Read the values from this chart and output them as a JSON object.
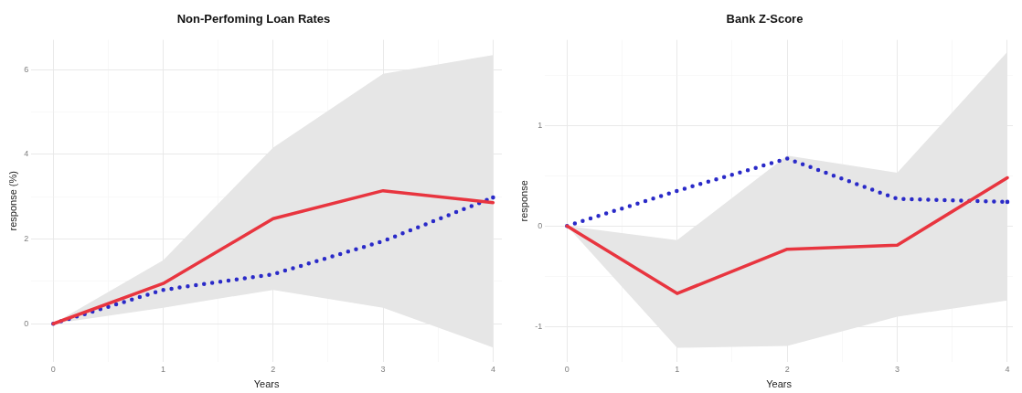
{
  "chart_data": [
    {
      "type": "line",
      "title": "Non-Perfoming Loan Rates",
      "xlabel": "Years",
      "ylabel": "response (%)",
      "x": [
        0,
        1,
        2,
        3,
        4
      ],
      "series": [
        {
          "color": "#e8353f",
          "line_style": "solid",
          "values": [
            0,
            0.95,
            2.48,
            3.14,
            2.86
          ],
          "lower": [
            0,
            0.38,
            0.8,
            0.38,
            -0.56
          ],
          "upper": [
            0,
            1.5,
            4.16,
            5.9,
            6.34
          ]
        },
        {
          "color": "#2a2ac8",
          "line_style": "dotted",
          "values": [
            0,
            0.8,
            1.17,
            1.95,
            2.98
          ]
        }
      ],
      "xlim": [
        -0.2,
        4.08
      ],
      "ylim": [
        -0.9,
        6.7
      ],
      "xticks": [
        0,
        {
          "value": 0.5,
          "label": null
        },
        1,
        {
          "value": 1.5,
          "label": null
        },
        2,
        {
          "value": 2.5,
          "label": null
        },
        3,
        {
          "value": 3.5,
          "label": null
        },
        4
      ],
      "yticks": [
        0,
        {
          "value": 1,
          "label": null
        },
        2,
        {
          "value": 3,
          "label": null
        },
        4,
        {
          "value": 5,
          "label": null
        },
        6
      ],
      "grid": true,
      "legend": false,
      "marker": "none"
    },
    {
      "type": "line",
      "title": "Bank Z-Score",
      "xlabel": "Years",
      "ylabel": "response",
      "x": [
        0,
        1,
        2,
        3,
        4
      ],
      "series": [
        {
          "color": "#e8353f",
          "line_style": "solid",
          "values": [
            0,
            -0.67,
            -0.23,
            -0.19,
            0.48
          ],
          "lower": [
            0,
            -1.21,
            -1.19,
            -0.9,
            -0.74
          ],
          "upper": [
            0,
            -0.14,
            0.7,
            0.53,
            1.73
          ]
        },
        {
          "color": "#2a2ac8",
          "line_style": "dotted",
          "values": [
            0,
            0.35,
            0.67,
            0.27,
            0.24
          ]
        }
      ],
      "xlim": [
        -0.2,
        4.05
      ],
      "ylim": [
        -1.35,
        1.85
      ],
      "xticks": [
        0,
        {
          "value": 0.5,
          "label": null
        },
        1,
        {
          "value": 1.5,
          "label": null
        },
        2,
        {
          "value": 2.5,
          "label": null
        },
        3,
        {
          "value": 3.5,
          "label": null
        },
        4
      ],
      "yticks": [
        -1,
        {
          "value": -0.5,
          "label": null
        },
        0,
        {
          "value": 0.5,
          "label": null
        },
        1,
        {
          "value": 1.5,
          "label": null
        }
      ],
      "grid": true,
      "legend": false,
      "marker": "none"
    }
  ]
}
